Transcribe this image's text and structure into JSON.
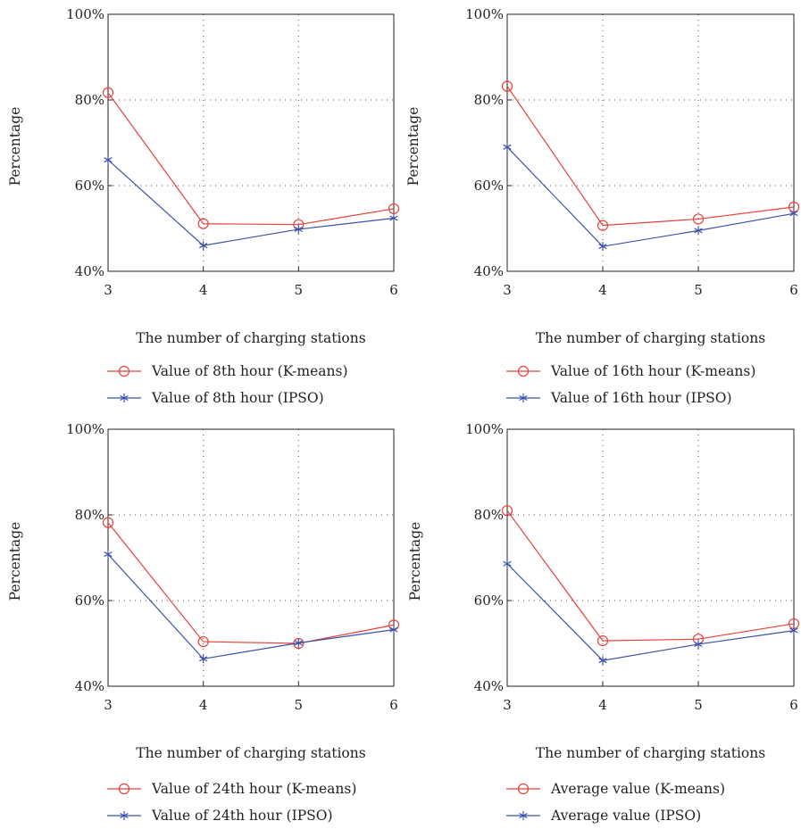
{
  "colors": {
    "kmeans": "#e8413a",
    "ipso": "#3b52a8",
    "axis": "#222222",
    "grid": "#555555"
  },
  "chart_data": [
    {
      "type": "line",
      "x": [
        3,
        4,
        5,
        6
      ],
      "xticks": [
        "3",
        "4",
        "5",
        "6"
      ],
      "xlim": [
        3,
        6
      ],
      "ylim": [
        40,
        100
      ],
      "yticks": [
        "40%",
        "60%",
        "80%",
        "100%"
      ],
      "xlabel": "The number of charging stations",
      "ylabel": "Percentage",
      "grid": "dotted",
      "legend_position": "below",
      "series": [
        {
          "name": "Value of 8th hour (K-means)",
          "marker": "circle",
          "values": [
            81.7,
            51.1,
            50.9,
            54.6
          ]
        },
        {
          "name": "Value of 8th hour (IPSO)",
          "marker": "asterisk",
          "values": [
            66.0,
            46.0,
            49.8,
            52.4
          ]
        }
      ]
    },
    {
      "type": "line",
      "x": [
        3,
        4,
        5,
        6
      ],
      "xticks": [
        "3",
        "4",
        "5",
        "6"
      ],
      "xlim": [
        3,
        6
      ],
      "ylim": [
        40,
        100
      ],
      "yticks": [
        "40%",
        "60%",
        "80%",
        "100%"
      ],
      "xlabel": "The number of charging stations",
      "ylabel": "Percentage",
      "grid": "dotted",
      "legend_position": "below",
      "series": [
        {
          "name": "Value of 16th hour (K-means)",
          "marker": "circle",
          "values": [
            83.2,
            50.7,
            52.2,
            55.0
          ]
        },
        {
          "name": "Value of 16th hour (IPSO)",
          "marker": "asterisk",
          "values": [
            69.0,
            45.8,
            49.5,
            53.5
          ]
        }
      ]
    },
    {
      "type": "line",
      "x": [
        3,
        4,
        5,
        6
      ],
      "xticks": [
        "3",
        "4",
        "5",
        "6"
      ],
      "xlim": [
        3,
        6
      ],
      "ylim": [
        40,
        100
      ],
      "yticks": [
        "40%",
        "60%",
        "80%",
        "100%"
      ],
      "xlabel": "The number of charging stations",
      "ylabel": "Percentage",
      "grid": "dotted",
      "legend_position": "below",
      "series": [
        {
          "name": "Value of 24th hour (K-means)",
          "marker": "circle",
          "values": [
            78.2,
            50.4,
            50.0,
            54.3
          ]
        },
        {
          "name": "Value of 24th hour (IPSO)",
          "marker": "asterisk",
          "values": [
            70.8,
            46.4,
            50.1,
            53.2
          ]
        }
      ]
    },
    {
      "type": "line",
      "x": [
        3,
        4,
        5,
        6
      ],
      "xticks": [
        "3",
        "4",
        "5",
        "6"
      ],
      "xlim": [
        3,
        6
      ],
      "ylim": [
        40,
        100
      ],
      "yticks": [
        "40%",
        "60%",
        "80%",
        "100%"
      ],
      "xlabel": "The number of charging stations",
      "ylabel": "Percentage",
      "grid": "dotted",
      "legend_position": "below",
      "series": [
        {
          "name": "Average value (K-means)",
          "marker": "circle",
          "values": [
            81.0,
            50.6,
            51.0,
            54.6
          ]
        },
        {
          "name": "Average value (IPSO)",
          "marker": "asterisk",
          "values": [
            68.6,
            46.0,
            49.8,
            53.0
          ]
        }
      ]
    }
  ]
}
